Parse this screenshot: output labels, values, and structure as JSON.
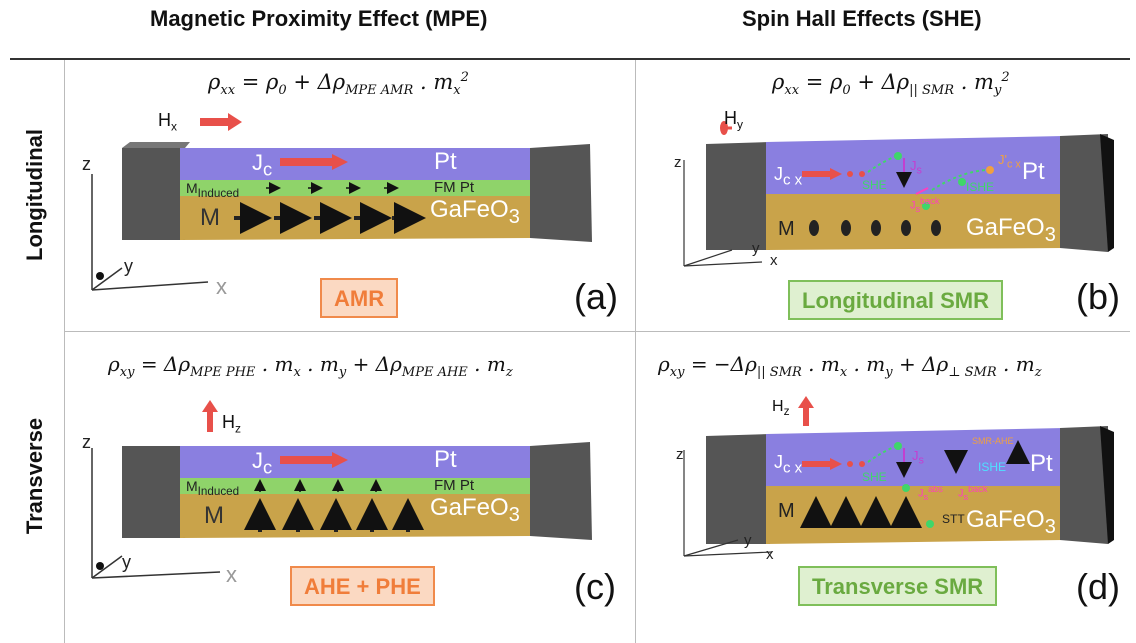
{
  "headers": {
    "col_left": "Magnetic Proximity Effect (MPE)",
    "col_right": "Spin Hall Effects (SHE)",
    "row_top": "Longitudinal",
    "row_bottom": "Transverse"
  },
  "panels": {
    "a": {
      "label": "(a)",
      "badge": "AMR",
      "field": "H",
      "field_sub": "x",
      "layer_pt": "Pt",
      "layer_fm": "FM Pt",
      "layer_mag": "GaFeO",
      "layer_mag_sub": "3",
      "m_label": "M",
      "m_induced_label": "M",
      "m_induced_sub": "Induced",
      "jc": "J",
      "jc_sub": "c",
      "axes": {
        "z": "z",
        "y": "y",
        "x": "x"
      }
    },
    "b": {
      "label": "(b)",
      "badge": "Longitudinal SMR",
      "field": "H",
      "field_sub": "y",
      "layer_pt": "Pt",
      "layer_mag": "GaFeO",
      "layer_mag_sub": "3",
      "m_label": "M",
      "jc": "J",
      "jc_sub": "c x",
      "she": "SHE",
      "ishe": "ISHE",
      "js": "J",
      "js_sub": "s",
      "jback": "J",
      "jback_sub": "s",
      "jback_sup": "back",
      "jcx_prime": "J'",
      "jcx_prime_sub": "c x",
      "axes": {
        "z": "z",
        "y": "y",
        "x": "x"
      }
    },
    "c": {
      "label": "(c)",
      "badge": "AHE + PHE",
      "field": "H",
      "field_sub": "z",
      "layer_pt": "Pt",
      "layer_fm": "FM Pt",
      "layer_mag": "GaFeO",
      "layer_mag_sub": "3",
      "m_label": "M",
      "m_induced_label": "M",
      "m_induced_sub": "Induced",
      "jc": "J",
      "jc_sub": "c",
      "axes": {
        "z": "z",
        "y": "y",
        "x": "x"
      }
    },
    "d": {
      "label": "(d)",
      "badge": "Transverse SMR",
      "field": "H",
      "field_sub": "z",
      "layer_pt": "Pt",
      "layer_mag": "GaFeO",
      "layer_mag_sub": "3",
      "m_label": "M",
      "jc": "J",
      "jc_sub": "c x",
      "she": "SHE",
      "ishe": "ISHE",
      "js": "J",
      "js_sub": "s",
      "jabs": "J",
      "jabs_sub": "s",
      "jabs_sup": "abs",
      "jback": "J",
      "jback_sub": "s",
      "jback_sup": "back",
      "stt": "STT",
      "smr_ahe": "SMR-AHE",
      "axes": {
        "z": "z",
        "y": "y",
        "x": "x"
      }
    }
  },
  "equations": {
    "a": {
      "lhs": "ρ",
      "lhs_sub": "xx",
      "rhs1": "= ρ",
      "rhs1_sub": "0",
      "rhs2": "+ Δρ",
      "rhs2_sub": "MPE AMR",
      "rhs3": ". m",
      "rhs3_sub": "x",
      "rhs3_sup": "2"
    },
    "b": {
      "lhs": "ρ",
      "lhs_sub": "xx",
      "rhs1": "= ρ",
      "rhs1_sub": "0",
      "rhs2": "+ Δρ",
      "rhs2_sub": "|| SMR",
      "rhs3": ". m",
      "rhs3_sub": "y",
      "rhs3_sup": "2"
    },
    "c": {
      "lhs": "ρ",
      "lhs_sub": "xy",
      "rhs1": "= Δρ",
      "rhs1_sub": "MPE PHE",
      "rhs2": ". m",
      "rhs2_sub": "x",
      "rhs3": ". m",
      "rhs3_sub": "y",
      "rhs4": "+ Δρ",
      "rhs4_sub": "MPE AHE",
      "rhs5": ". m",
      "rhs5_sub": "z"
    },
    "d": {
      "lhs": "ρ",
      "lhs_sub": "xy",
      "rhs1": "= −Δρ",
      "rhs1_sub": "|| SMR",
      "rhs2": ". m",
      "rhs2_sub": "x",
      "rhs3": ". m",
      "rhs3_sub": "y",
      "rhs4": "+ Δρ",
      "rhs4_sub": "⊥ SMR",
      "rhs5": ". m",
      "rhs5_sub": "z"
    }
  },
  "colors": {
    "pt_layer": "#8a7fe0",
    "fm_layer": "#8fd36a",
    "mag_layer": "#c9a34a",
    "contact": "#555555",
    "badge_orange": "#f07d3a",
    "badge_green": "#6aaa40",
    "arrow_red": "#e8504a",
    "she_green": "#3fd66a",
    "jback_magenta": "#ff3fbf",
    "ishe_cyan": "#4fe0ff"
  }
}
